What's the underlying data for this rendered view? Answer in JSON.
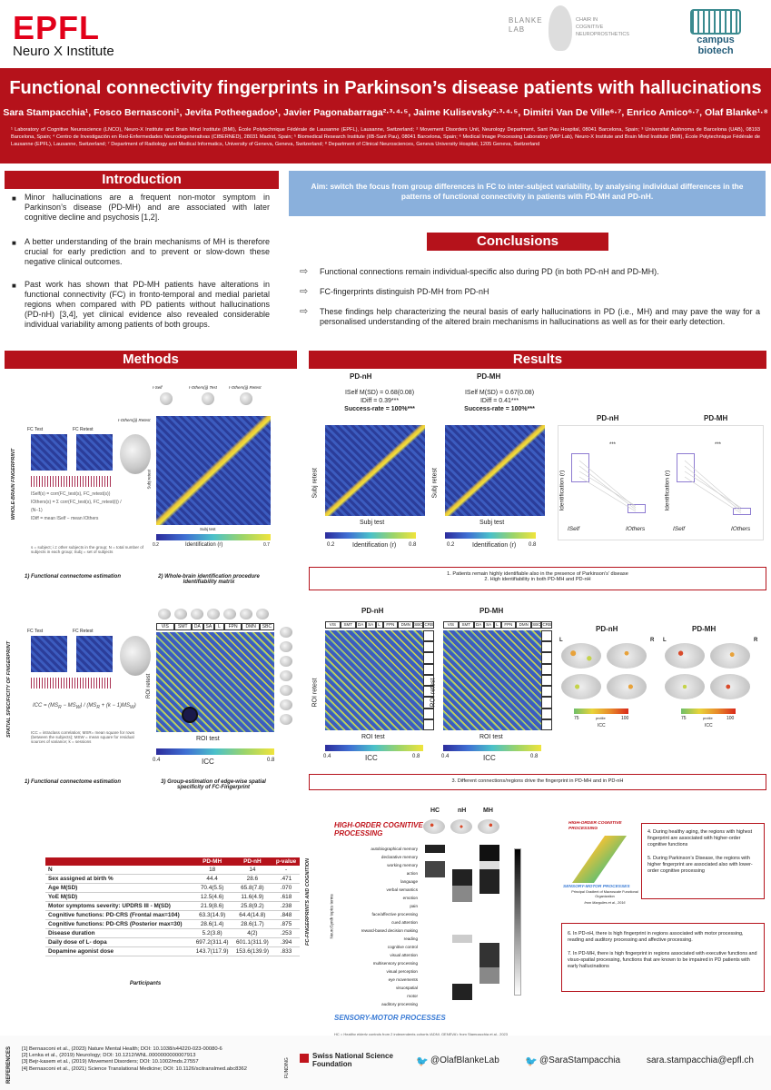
{
  "header": {
    "logo_epfl": "EPFL",
    "logo_neurox": "Neuro X Institute",
    "blanke_logo": "BLANKE LAB",
    "blanke_chair": "CHAIR IN COGNITIVE NEUROPROSTHETICS",
    "campus": "campus biotech",
    "title": "Functional connectivity fingerprints in Parkinson’s disease patients with hallucinations",
    "authors": "Sara Stampacchia¹, Fosco Bernasconi¹, Jevita Potheegadoo¹, Javier Pagonabarraga²·³·⁴·⁵, Jaime Kulisevsky²·³·⁴·⁵, Dimitri Van De Ville⁶·⁷, Enrico Amico⁶·⁷, Olaf Blanke¹·⁸",
    "affiliations": "¹ Laboratory of Cognitive Neuroscience (LNCO), Neuro-X Institute and Brain Mind Institute (BMI), École Polytechnique Fédérale de Lausanne (EPFL), Lausanne, Switzerland; ² Movement Disorders Unit, Neurology Department, Sant Pau Hospital, 08041 Barcelona, Spain; ³ Universitat Autònoma de Barcelona (UAB), 08193 Barcelona, Spain; ⁴ Centro de Investigación en Red-Enfermedades Neurodegenerativas (CIBERNED), 28031 Madrid, Spain; ⁵ Biomedical Research Institute (IIB-Sant Pau), 08041 Barcelona, Spain; ⁶ Medical Image Processing Laboratory (MIP:Lab), Neuro-X Institute and Brain Mind Institute (BMI), École Polytechnique Fédérale de Lausanne (EPFL), Lausanne, Switzerland; ⁷ Department of Radiology and Medical Informatics, University of Geneva, Geneva, Switzerland; ⁸ Department of Clinical Neurosciences, Geneva University Hospital, 1205 Geneva, Switzerland"
  },
  "intro": {
    "heading": "Introduction",
    "bullets": [
      "Minor hallucinations are a frequent non-motor symptom in Parkinson’s disease (PD-MH) and are associated with later cognitive decline and psychosis [1,2].",
      "A better understanding of the brain mechanisms of MH is therefore crucial for early prediction and to prevent or slow-down these negative clinical outcomes.",
      "Past work has shown that PD-MH patients have alterations in functional connectivity (FC) in fronto-temporal and medial parietal regions when compared with PD patients without hallucinations (PD-nH) [3,4], yet clinical evidence also revealed considerable individual variability among patients of both groups."
    ]
  },
  "aim": "Aim: switch the focus from group differences in FC to inter-subject variability, by analysing individual differences in the patterns of functional connectivity in patients with PD-MH and PD-nH.",
  "conclusions": {
    "heading": "Conclusions",
    "items": [
      "Functional connections remain individual-specific also during PD (in both PD-nH and PD-MH).",
      "FC-fingerprints distinguish PD-MH from PD-nH",
      "These findings help characterizing the neural basis of early hallucinations in PD (i.e., MH) and may pave the way for a personalised understanding of the altered brain mechanisms in hallucinations as well as for their early detection."
    ]
  },
  "methods": {
    "heading": "Methods",
    "side_label_1": "WHOLE-BRAIN FINGERPRINT",
    "side_label_2": "SPATIAL SPECIFICITY OF FINGERPRINT",
    "fc_test": "FC Test",
    "fc_retest": "FC Retest",
    "iself": "I-Self",
    "iothers_test": "I-Others(ij) Test",
    "iothers_retest": "I-Others(ij) Retest",
    "iothers": "I-Others(ji) Retest",
    "subj_test": "Subj test",
    "subj_retest": "Subj retest",
    "identification": "Identification (r)",
    "cbar_min": "0.2",
    "cbar_max": "0.7",
    "caption_1": "1) Functional connectome estimation",
    "caption_2": "2) Whole-brain identification procedure Identifiability matrix",
    "caption_3": "1) Functional connectome estimation",
    "caption_4": "3) Group-estimation of edge-wise spatial specificity of FC-Fingerprint",
    "networks": [
      "VIS",
      "SMT",
      "DA",
      "SA",
      "L",
      "FPN",
      "DMN",
      "SBC"
    ],
    "roi_retest": "ROI retest",
    "roi_test": "ROI test",
    "icc": "ICC",
    "icc_min": "0.4",
    "icc_max": "0.8",
    "formula_note": "s = subject; i ≠ other subjects in the group; N = total number of subjects in each group; Subj = set of subjects",
    "icc_note": "ICC = intraclass correlation; MSR= mean square for rows (between the subjects); MSW = mean square for residual sources of variance; k = sessions"
  },
  "results": {
    "heading": "Results",
    "pdnh": "PD-nH",
    "pdmh": "PD-MH",
    "pdnh_stats": [
      "ISelf M(SD) = 0.68(0.08)",
      "IDiff = 0.39***",
      "Success-rate = 100%***"
    ],
    "pdmh_stats": [
      "ISelf M(SD) = 0.67(0.08)",
      "IDiff = 0.41***",
      "Success-rate = 100%***"
    ],
    "subj_retest": "Subj retest",
    "subj_test": "Subj test",
    "identification": "Identification (r)",
    "cb_min": "0.2",
    "cb_max": "0.8",
    "box_ylabel": "Identification (r)",
    "box_x1": "ISelf",
    "box_x2": "IOthers",
    "stars": "***",
    "finding_1": "1.    Patients remain highly identifiable also in the presence of Parkinson’s’ disease",
    "finding_2": "2.    High identifiability in both PD-MH and PD-nH",
    "networks": [
      "VIS",
      "SMT",
      "DA",
      "SA",
      "L",
      "FPN",
      "DMN",
      "SBC",
      "CRB"
    ],
    "roi_retest": "ROI retest",
    "roi_test": "ROI test",
    "icc": "ICC",
    "icc_min": "0.4",
    "icc_max": "0.8",
    "pctile_min": "75",
    "pctile_max": "100",
    "pctile": "prctile",
    "L": "L",
    "R": "R",
    "finding_3": "3.    Different connections/regions drive the fingerprint in PD-MH and in PD-nH"
  },
  "participants": {
    "caption": "Participants",
    "headers": [
      "",
      "PD-MH",
      "PD-nH",
      "p-value"
    ],
    "rows": [
      [
        "N",
        "18",
        "14",
        "-"
      ],
      [
        "Sex assigned at birth %",
        "44.4",
        "28.6",
        ".471"
      ],
      [
        "Age M(SD)",
        "70.4(5.5)",
        "65.8(7.8)",
        ".070"
      ],
      [
        "YoE M(SD)",
        "12.5(4.6)",
        "11.6(4.9)",
        ".618"
      ],
      [
        "Motor symptoms severity: UPDRS III - M(SD)",
        "21.9(8.6)",
        "25.8(9.2)",
        ".238"
      ],
      [
        "Cognitive functions: PD-CRS (Frontal max=104)",
        "63.3(14.9)",
        "64.4(14.8)",
        ".848"
      ],
      [
        "Cognitive functions: PD-CRS (Posterior max=30)",
        "28.6(1.4)",
        "28.6(1.7)",
        ".875"
      ],
      [
        "Disease duration",
        "5.2(3.8)",
        "4(2)",
        ".253"
      ],
      [
        "Daily dose of L- dopa",
        "697.2(311.4)",
        "601.1(311.9)",
        ".394"
      ],
      [
        "Dopamine agonist dose",
        "143.7(117.9)",
        "153.6(139.9)",
        ".833"
      ]
    ]
  },
  "cognition": {
    "side_label": "FC-FINGERPRINTS AND COGNITION",
    "high": "HIGH-ORDER COGNITIVE PROCESSING",
    "low": "SENSORY-MOTOR PROCESSES",
    "axis": "NeuroSynth topics terms",
    "cols": [
      "HC",
      "nH",
      "MH"
    ],
    "terms": [
      "autobiographical memory",
      "declarative memory",
      "working memory",
      "action",
      "language",
      "verbal semantics",
      "emotion",
      "pain",
      "face/affective processing",
      "cued attention",
      "reward-based decision making",
      "reading",
      "cognitive control",
      "visual attention",
      "multisensory processing",
      "visual perception",
      "eye movements",
      "visuospatial",
      "motor",
      "auditory processing"
    ],
    "hc_note": "HC = Healthy elderly controls from 2 independents cohorts (ADNI, GENEVA); from Stampacchia et al., 2023",
    "gradient_high": "HIGH-ORDER COGNITIVE PROCESSING",
    "gradient_low": "SENSORY-MOTOR PROCESSES",
    "gradient_caption": "Principal Gradient of Macroscale Functional Organization",
    "gradient_ref": "from Margulies et al., 2016",
    "finding_4a": "4.    During healthy aging, the regions with highest fingerprint are associated with higher-order cognitive functions",
    "finding_5": "5.    During Parkinson’s Disease, the regions with higher fingerprint are associated also with lower-order cognitive processing",
    "finding_6": "6.    In PD-nH, there is high fingerprint in regions associated with motor processing, reading and auditory processing and affective processing.",
    "finding_7": "7.    In PD-MH, there is high fingerprint in regions associated with executive functions and visuo-spatial processing, functions that are known to be impaired in PD patients with early hallucinations"
  },
  "footer": {
    "refs_label": "REFERENCES",
    "refs": [
      "[1] Bernasconi et al., (2023) Nature Mental Health; DOI: 10.1038/s44220-023-00080-6",
      "[2] Lenka et al., (2019) Neurology; DOI: 10.1212/WNL.0000000000007913",
      "[3] Bejr-kasem et al., (2019) Movement Disorders; DOI: 10.1002/mds.27557",
      "[4] Bernasconi et al., (2021) Science Translational Medicine; DOI: 10.1126/scitranslmed.abc8362"
    ],
    "funding_label": "FUNDING",
    "snsf": "Swiss National Science Foundation",
    "twitter1": "@OlafBlankeLab",
    "twitter2": "@SaraStampacchia",
    "email": "sara.stampacchia@epfl.ch"
  }
}
